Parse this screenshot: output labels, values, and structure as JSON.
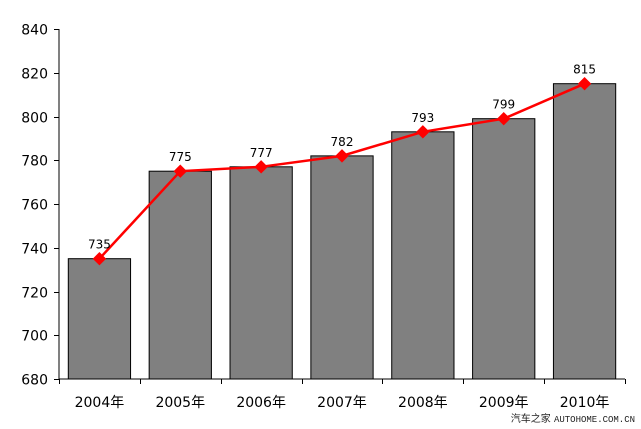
{
  "chart_data": {
    "type": "bar",
    "categories": [
      "2004年",
      "2005年",
      "2006年",
      "2007年",
      "2008年",
      "2009年",
      "2010年"
    ],
    "series": [
      {
        "type": "bar",
        "values": [
          735,
          775,
          777,
          782,
          793,
          799,
          815
        ],
        "color": "#808080"
      },
      {
        "type": "line",
        "values": [
          735,
          775,
          777,
          782,
          793,
          799,
          815
        ],
        "color": "#ff0000",
        "marker": "diamond"
      }
    ],
    "data_labels": [
      "735",
      "775",
      "777",
      "782",
      "793",
      "799",
      "815"
    ],
    "ylim": [
      680,
      840
    ],
    "yticks": [
      680,
      700,
      720,
      740,
      760,
      780,
      800,
      820,
      840
    ],
    "ytick_labels": [
      "680",
      "700",
      "720",
      "740",
      "760",
      "780",
      "800",
      "820",
      "840"
    ],
    "grid": false,
    "title": "",
    "xlabel": "",
    "ylabel": ""
  },
  "watermark": {
    "cn": "汽车之家",
    "latin": "AUTOHOME.COM.CN"
  }
}
